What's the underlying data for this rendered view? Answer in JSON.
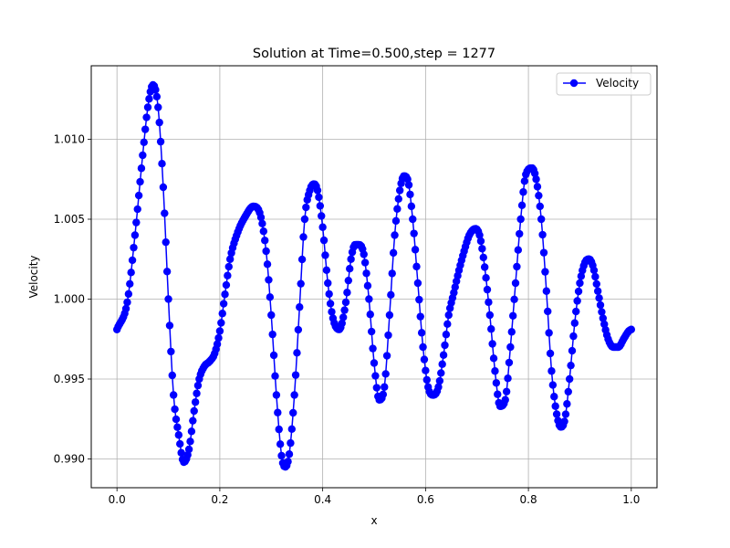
{
  "chart_data": {
    "type": "line",
    "title": "Solution at Time=0.500,step = 1277",
    "xlabel": "x",
    "ylabel": "Velocity",
    "xlim": [
      -0.05,
      1.05
    ],
    "ylim": [
      0.9882,
      1.0146
    ],
    "x_ticks": [
      0.0,
      0.2,
      0.4,
      0.6,
      0.8,
      1.0
    ],
    "x_tick_labels": [
      "0.0",
      "0.2",
      "0.4",
      "0.6",
      "0.8",
      "1.0"
    ],
    "y_ticks": [
      0.99,
      0.995,
      1.0,
      1.005,
      1.01
    ],
    "y_tick_labels": [
      "0.990",
      "0.995",
      "1.000",
      "1.005",
      "1.010"
    ],
    "grid": true,
    "legend_position": "top-right",
    "series": [
      {
        "name": "Velocity",
        "color": "#0000ff",
        "marker": "circle",
        "x": [
          0.0,
          0.02,
          0.035,
          0.05,
          0.06,
          0.07,
          0.08,
          0.09,
          0.1,
          0.11,
          0.12,
          0.13,
          0.14,
          0.15,
          0.16,
          0.17,
          0.18,
          0.19,
          0.2,
          0.21,
          0.22,
          0.235,
          0.25,
          0.265,
          0.275,
          0.29,
          0.3,
          0.31,
          0.32,
          0.327,
          0.335,
          0.345,
          0.355,
          0.365,
          0.375,
          0.383,
          0.39,
          0.4,
          0.41,
          0.42,
          0.432,
          0.445,
          0.455,
          0.463,
          0.47,
          0.48,
          0.49,
          0.5,
          0.51,
          0.52,
          0.53,
          0.54,
          0.55,
          0.558,
          0.565,
          0.575,
          0.585,
          0.595,
          0.605,
          0.615,
          0.625,
          0.635,
          0.645,
          0.655,
          0.665,
          0.675,
          0.685,
          0.697,
          0.705,
          0.715,
          0.725,
          0.735,
          0.745,
          0.755,
          0.765,
          0.775,
          0.785,
          0.795,
          0.807,
          0.815,
          0.825,
          0.835,
          0.845,
          0.855,
          0.863,
          0.871,
          0.88,
          0.89,
          0.9,
          0.91,
          0.918,
          0.926,
          0.935,
          0.945,
          0.955,
          0.965,
          0.975,
          0.985,
          0.995,
          1.0
        ],
        "values": [
          0.9981,
          0.9998,
          1.004,
          1.009,
          1.012,
          1.0134,
          1.012,
          1.007,
          1.0,
          0.994,
          0.9915,
          0.9898,
          0.9906,
          0.993,
          0.995,
          0.9958,
          0.9961,
          0.9966,
          0.998,
          1.0003,
          1.0025,
          1.0042,
          1.0052,
          1.0058,
          1.0056,
          1.003,
          0.999,
          0.994,
          0.9902,
          0.9895,
          0.9903,
          0.994,
          0.9995,
          1.005,
          1.0068,
          1.0072,
          1.0068,
          1.0045,
          1.001,
          0.9988,
          0.9981,
          0.9998,
          1.0025,
          1.0034,
          1.0034,
          1.0028,
          1.0,
          0.996,
          0.9937,
          0.9945,
          0.999,
          1.004,
          1.0068,
          1.0077,
          1.0075,
          1.005,
          1.001,
          0.997,
          0.9945,
          0.994,
          0.9945,
          0.9965,
          0.999,
          1.0004,
          1.0018,
          1.003,
          1.004,
          1.0044,
          1.004,
          1.002,
          0.999,
          0.9955,
          0.9933,
          0.9937,
          0.997,
          1.001,
          1.005,
          1.0078,
          1.0082,
          1.0075,
          1.005,
          1.0005,
          0.9955,
          0.9928,
          0.992,
          0.9925,
          0.995,
          0.9985,
          1.001,
          1.0023,
          1.0025,
          1.002,
          1.0005,
          0.9988,
          0.9975,
          0.997,
          0.997,
          0.9975,
          0.998,
          0.9981
        ]
      }
    ]
  }
}
